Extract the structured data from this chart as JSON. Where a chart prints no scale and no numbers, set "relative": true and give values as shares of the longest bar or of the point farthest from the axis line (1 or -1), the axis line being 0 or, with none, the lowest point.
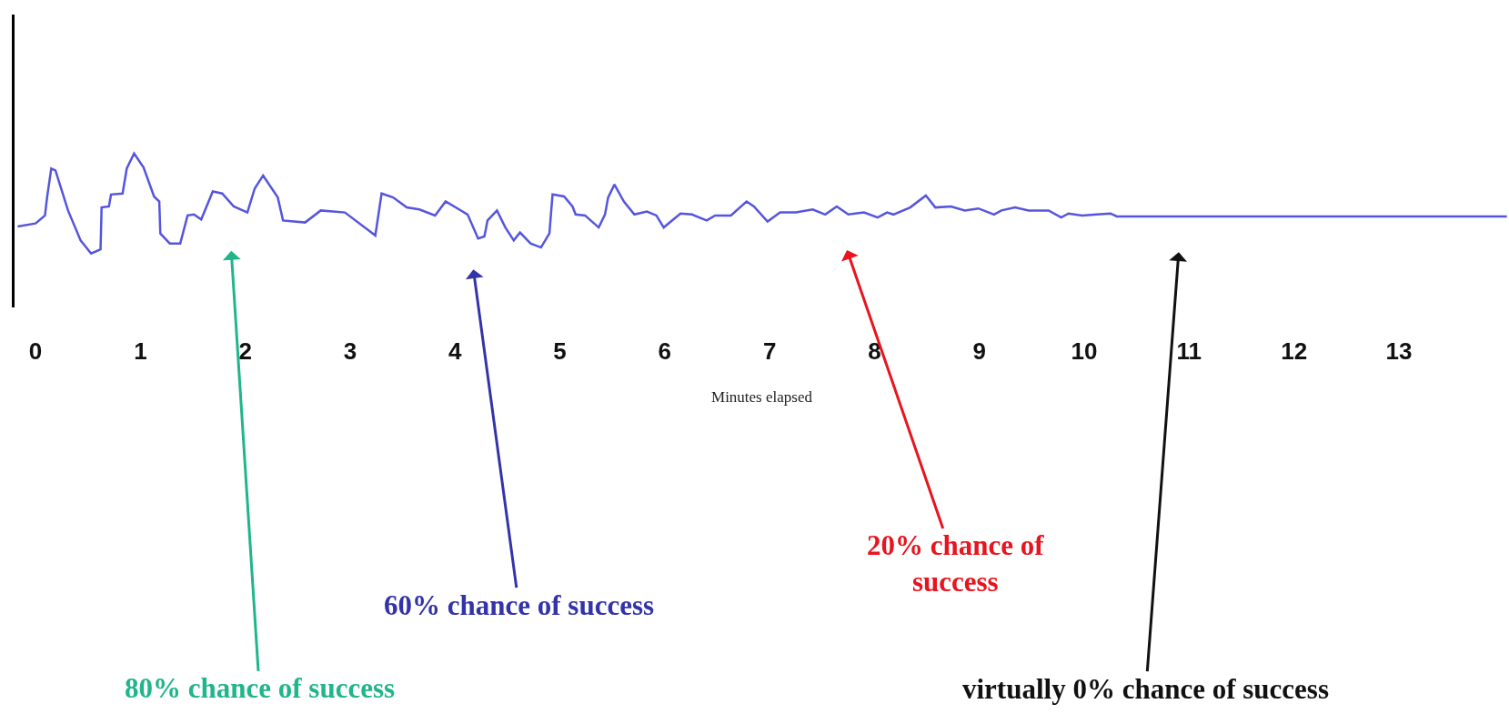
{
  "chart_data": {
    "type": "line",
    "relative": true,
    "xlabel": "Minutes elapsed",
    "x": [
      -0.17,
      0,
      0.09,
      0.11,
      0.15,
      0.19,
      0.31,
      0.43,
      0.53,
      0.62,
      0.63,
      0.7,
      0.72,
      0.83,
      0.87,
      0.94,
      1.03,
      1.13,
      1.18,
      1.19,
      1.28,
      1.38,
      1.45,
      1.51,
      1.58,
      1.69,
      1.78,
      1.89,
      2.02,
      2.09,
      2.17,
      2.31,
      2.36,
      2.57,
      2.72,
      2.95,
      3.24,
      3.3,
      3.41,
      3.54,
      3.66,
      3.81,
      3.91,
      4.12,
      4.22,
      4.28,
      4.31,
      4.4,
      4.48,
      4.56,
      4.62,
      4.72,
      4.82,
      4.9,
      4.93,
      5.04,
      5.12,
      5.15,
      5.24,
      5.37,
      5.43,
      5.46,
      5.52,
      5.61,
      5.71,
      5.83,
      5.92,
      5.99,
      6.15,
      6.26,
      6.4,
      6.48,
      6.63,
      6.78,
      6.85,
      6.98,
      7.1,
      7.25,
      7.41,
      7.53,
      7.64,
      7.75,
      7.9,
      8.03,
      8.12,
      8.18,
      8.34,
      8.49,
      8.58,
      8.73,
      8.86,
      8.99,
      9.14,
      9.21,
      9.34,
      9.47,
      9.66,
      9.78,
      9.85,
      9.98,
      10.12,
      10.25,
      10.31,
      14.03
    ],
    "series": [
      {
        "color": "#5555dd",
        "values": [
          0.27,
          0.3,
          0.38,
          0.56,
          0.85,
          0.83,
          0.43,
          0.13,
          0.0,
          0.04,
          0.46,
          0.47,
          0.59,
          0.6,
          0.85,
          1.0,
          0.86,
          0.57,
          0.52,
          0.2,
          0.1,
          0.1,
          0.38,
          0.39,
          0.34,
          0.62,
          0.6,
          0.47,
          0.41,
          0.65,
          0.78,
          0.56,
          0.33,
          0.31,
          0.43,
          0.41,
          0.18,
          0.6,
          0.56,
          0.46,
          0.44,
          0.38,
          0.52,
          0.39,
          0.15,
          0.17,
          0.33,
          0.43,
          0.26,
          0.13,
          0.21,
          0.1,
          0.06,
          0.2,
          0.59,
          0.57,
          0.47,
          0.39,
          0.38,
          0.26,
          0.39,
          0.56,
          0.69,
          0.52,
          0.39,
          0.42,
          0.38,
          0.26,
          0.4,
          0.39,
          0.33,
          0.38,
          0.38,
          0.52,
          0.47,
          0.32,
          0.41,
          0.41,
          0.44,
          0.39,
          0.47,
          0.39,
          0.41,
          0.36,
          0.41,
          0.39,
          0.46,
          0.58,
          0.46,
          0.47,
          0.43,
          0.45,
          0.39,
          0.43,
          0.46,
          0.43,
          0.43,
          0.36,
          0.4,
          0.38,
          0.39,
          0.4,
          0.37,
          0.37
        ]
      }
    ],
    "xlim": [
      -0.2,
      14.05
    ],
    "xticks": [
      0,
      1,
      2,
      3,
      4,
      5,
      6,
      7,
      8,
      9,
      10,
      11,
      12,
      13
    ],
    "marker": "none",
    "line_style": "solid",
    "annotations": [
      "80% chance of success",
      "60% chance of success",
      "20% chance of\nsuccess",
      "virtually 0% chance of success"
    ]
  }
}
